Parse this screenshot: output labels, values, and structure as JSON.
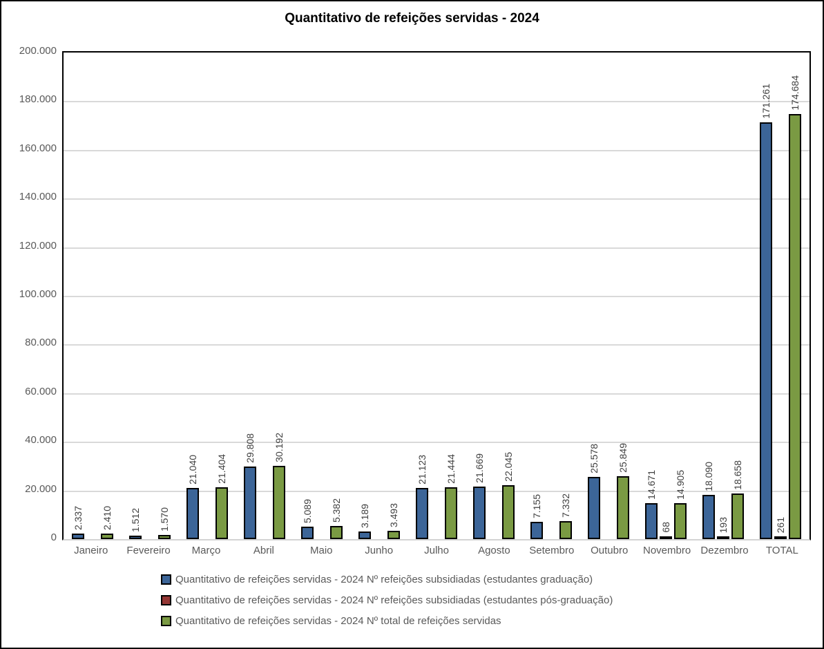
{
  "title": "Quantitativo de refeições servidas - 2024",
  "colors": {
    "series_graduacao": "#3C6598",
    "series_pos_graduacao": "#943634",
    "series_total": "#7A9A43",
    "bar_border": "#000000",
    "gridline": "#D9D9D9",
    "axis_text": "#595959",
    "value_label_text": "#3F3F3F",
    "title_text": "#000000",
    "background": "#FFFFFF",
    "frame_border": "#000000"
  },
  "chart_data": {
    "type": "bar",
    "title": "Quantitativo de refeições servidas - 2024",
    "xlabel": "",
    "ylabel": "",
    "ylim": [
      0,
      200000
    ],
    "ytick_interval": 20000,
    "grid": true,
    "legend_position": "bottom-left",
    "value_labels_rotated": true,
    "yticks": [
      {
        "value": 200000,
        "label": "200.000"
      },
      {
        "value": 180000,
        "label": "180.000"
      },
      {
        "value": 160000,
        "label": "160.000"
      },
      {
        "value": 140000,
        "label": "140.000"
      },
      {
        "value": 120000,
        "label": "120.000"
      },
      {
        "value": 100000,
        "label": "100.000"
      },
      {
        "value": 80000,
        "label": "80.000"
      },
      {
        "value": 60000,
        "label": "60.000"
      },
      {
        "value": 40000,
        "label": "40.000"
      },
      {
        "value": 20000,
        "label": "20.000"
      },
      {
        "value": 0,
        "label": "0"
      }
    ],
    "categories": [
      "Janeiro",
      "Fevereiro",
      "Março",
      "Abril",
      "Maio",
      "Junho",
      "Julho",
      "Agosto",
      "Setembro",
      "Outubro",
      "Novembro",
      "Dezembro",
      "TOTAL"
    ],
    "series": [
      {
        "name": "Quantitativo de refeições servidas - 2024 Nº refeições subsidiadas (estudantes graduação)",
        "color": "#3C6598",
        "slug": "graduacao",
        "values": [
          2337,
          1512,
          21040,
          29808,
          5089,
          3189,
          21123,
          21669,
          7155,
          25578,
          14671,
          18090,
          171261
        ],
        "labels": [
          "2.337",
          "1.512",
          "21.040",
          "29.808",
          "5.089",
          "3.189",
          "21.123",
          "21.669",
          "7.155",
          "25.578",
          "14.671",
          "18.090",
          "171.261"
        ]
      },
      {
        "name": "Quantitativo de refeições servidas - 2024 Nº refeições subsidiadas (estudantes pós-graduação)",
        "color": "#943634",
        "slug": "pos-graduacao",
        "values": [
          0,
          0,
          0,
          0,
          0,
          0,
          0,
          0,
          0,
          0,
          68,
          193,
          261
        ],
        "labels": [
          "",
          "",
          "",
          "",
          "",
          "",
          "",
          "",
          "",
          "",
          "68",
          "193",
          "261"
        ]
      },
      {
        "name": "Quantitativo de refeições servidas - 2024 Nº total de refeições servidas",
        "color": "#7A9A43",
        "slug": "total",
        "values": [
          2410,
          1570,
          21404,
          30192,
          5382,
          3493,
          21444,
          22045,
          7332,
          25849,
          14905,
          18658,
          174684
        ],
        "labels": [
          "2.410",
          "1.570",
          "21.404",
          "30.192",
          "5.382",
          "3.493",
          "21.444",
          "22.045",
          "7.332",
          "25.849",
          "14.905",
          "18.658",
          "174.684"
        ]
      }
    ]
  }
}
